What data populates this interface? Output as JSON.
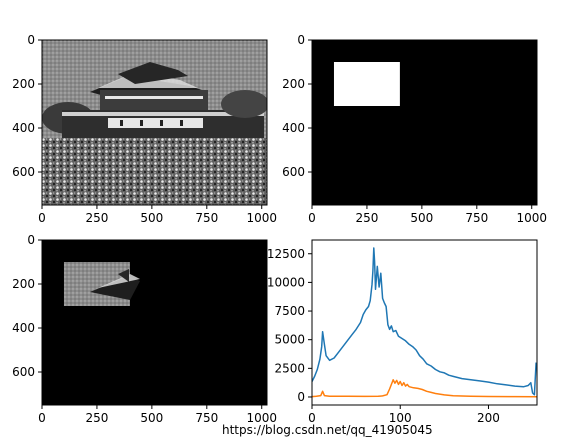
{
  "figure": {
    "watermark": "https://blog.csdn.net/qq_41905045"
  },
  "chart_data": [
    {
      "panel": "top-left",
      "type": "image",
      "content": "grayscale photograph of a gate building",
      "xticks": [
        "0",
        "250",
        "500",
        "750",
        "1000"
      ],
      "yticks": [
        "0",
        "200",
        "400",
        "600"
      ],
      "xlim": [
        0,
        1024
      ],
      "ylim": [
        750,
        0
      ]
    },
    {
      "panel": "top-right",
      "type": "image",
      "content": "binary mask: white rectangle on black",
      "mask_rect": {
        "x": [
          100,
          400
        ],
        "y": [
          100,
          300
        ]
      },
      "xticks": [
        "0",
        "250",
        "500",
        "750",
        "1000"
      ],
      "yticks": [
        "0",
        "200",
        "400",
        "600"
      ],
      "xlim": [
        0,
        1024
      ],
      "ylim": [
        750,
        0
      ]
    },
    {
      "panel": "bottom-left",
      "type": "image",
      "content": "masked photograph: only the rectangle region visible",
      "mask_rect": {
        "x": [
          100,
          400
        ],
        "y": [
          100,
          300
        ]
      },
      "xticks": [
        "0",
        "250",
        "500",
        "750",
        "1000"
      ],
      "yticks": [
        "0",
        "200",
        "400",
        "600"
      ],
      "xlim": [
        0,
        1024
      ],
      "ylim": [
        750,
        0
      ]
    },
    {
      "panel": "bottom-right",
      "type": "line",
      "xticks": [
        "0",
        "100",
        "200"
      ],
      "yticks": [
        "0",
        "2500",
        "5000",
        "7500",
        "10000",
        "12500"
      ],
      "xlim": [
        0,
        255
      ],
      "ylim": [
        -700,
        13700
      ],
      "series": [
        {
          "color": "#1f77b4",
          "points": [
            [
              0,
              1350
            ],
            [
              3,
              1800
            ],
            [
              6,
              2400
            ],
            [
              9,
              3300
            ],
            [
              11,
              4400
            ],
            [
              12,
              5700
            ],
            [
              14,
              4600
            ],
            [
              16,
              3600
            ],
            [
              20,
              3200
            ],
            [
              25,
              3400
            ],
            [
              30,
              3900
            ],
            [
              35,
              4400
            ],
            [
              40,
              4900
            ],
            [
              45,
              5400
            ],
            [
              50,
              5900
            ],
            [
              55,
              6500
            ],
            [
              58,
              7200
            ],
            [
              61,
              7600
            ],
            [
              64,
              7900
            ],
            [
              66,
              8400
            ],
            [
              68,
              9800
            ],
            [
              69,
              11000
            ],
            [
              70,
              13000
            ],
            [
              71,
              11800
            ],
            [
              72,
              9400
            ],
            [
              74,
              11400
            ],
            [
              76,
              9600
            ],
            [
              78,
              10800
            ],
            [
              80,
              8600
            ],
            [
              82,
              8200
            ],
            [
              84,
              7900
            ],
            [
              86,
              6300
            ],
            [
              88,
              5900
            ],
            [
              90,
              6200
            ],
            [
              92,
              5700
            ],
            [
              95,
              5800
            ],
            [
              98,
              5300
            ],
            [
              102,
              5100
            ],
            [
              106,
              4900
            ],
            [
              110,
              4600
            ],
            [
              114,
              4400
            ],
            [
              118,
              4100
            ],
            [
              122,
              3600
            ],
            [
              126,
              3300
            ],
            [
              130,
              2900
            ],
            [
              135,
              2700
            ],
            [
              140,
              2400
            ],
            [
              145,
              2200
            ],
            [
              150,
              2100
            ],
            [
              155,
              1900
            ],
            [
              160,
              1800
            ],
            [
              165,
              1700
            ],
            [
              170,
              1600
            ],
            [
              180,
              1500
            ],
            [
              190,
              1400
            ],
            [
              200,
              1300
            ],
            [
              210,
              1150
            ],
            [
              220,
              1050
            ],
            [
              230,
              950
            ],
            [
              240,
              900
            ],
            [
              245,
              1000
            ],
            [
              248,
              1250
            ],
            [
              250,
              350
            ],
            [
              252,
              200
            ],
            [
              254,
              3000
            ]
          ]
        },
        {
          "color": "#ff7f0e",
          "points": [
            [
              0,
              30
            ],
            [
              5,
              60
            ],
            [
              10,
              120
            ],
            [
              12,
              500
            ],
            [
              14,
              120
            ],
            [
              20,
              70
            ],
            [
              40,
              60
            ],
            [
              60,
              50
            ],
            [
              75,
              60
            ],
            [
              80,
              90
            ],
            [
              85,
              200
            ],
            [
              88,
              700
            ],
            [
              90,
              1100
            ],
            [
              92,
              1500
            ],
            [
              94,
              1200
            ],
            [
              96,
              1450
            ],
            [
              98,
              1100
            ],
            [
              100,
              1350
            ],
            [
              102,
              1000
            ],
            [
              104,
              1250
            ],
            [
              106,
              950
            ],
            [
              108,
              1100
            ],
            [
              110,
              900
            ],
            [
              115,
              800
            ],
            [
              120,
              750
            ],
            [
              125,
              650
            ],
            [
              130,
              500
            ],
            [
              135,
              400
            ],
            [
              140,
              300
            ],
            [
              150,
              180
            ],
            [
              160,
              100
            ],
            [
              180,
              60
            ],
            [
              200,
              40
            ],
            [
              230,
              30
            ],
            [
              255,
              20
            ]
          ]
        }
      ]
    }
  ]
}
